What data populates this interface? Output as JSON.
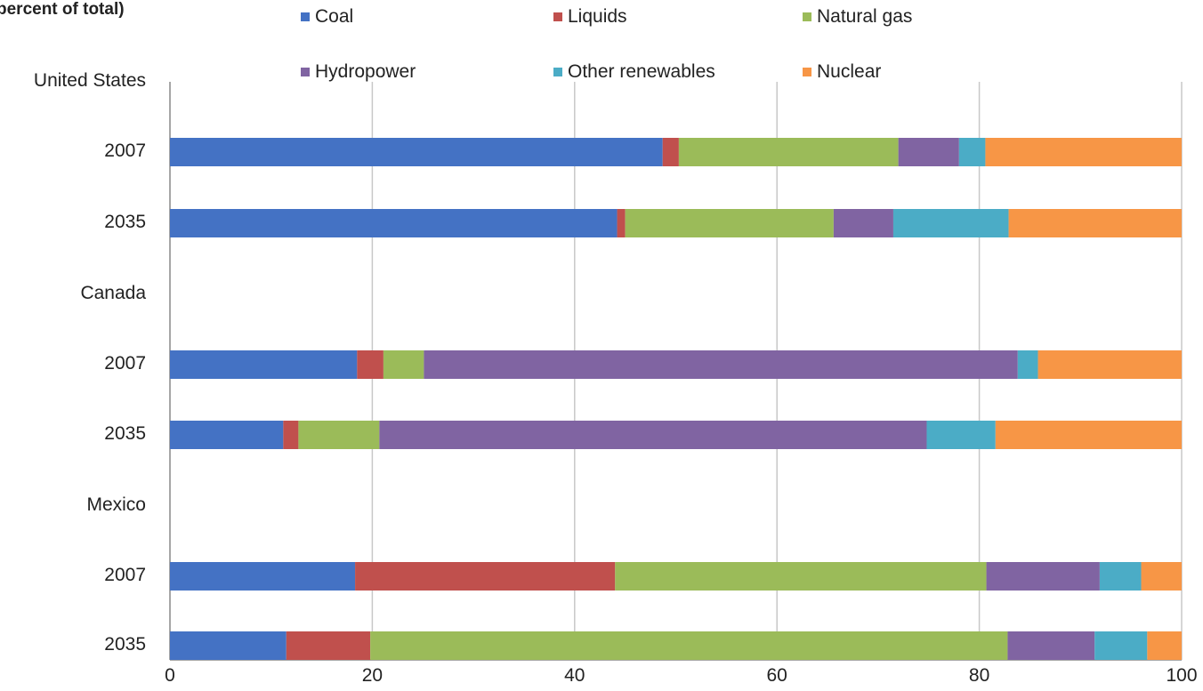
{
  "chart_data": {
    "type": "bar",
    "orientation": "horizontal",
    "stacked": true,
    "title": "",
    "subtitle": "percent of total)",
    "xlabel": "",
    "ylabel": "",
    "xlim": [
      0,
      100
    ],
    "x_ticks": [
      "0",
      "20",
      "40",
      "60",
      "80",
      "100"
    ],
    "grid": true,
    "legend_position": "top",
    "categories": [
      "United States",
      "2007",
      "2035",
      "Canada",
      "2007",
      "2035",
      "Mexico",
      "2007",
      "2035"
    ],
    "series": [
      {
        "name": "Coal",
        "color": "#4472C4",
        "values": [
          null,
          48.7,
          44.2,
          null,
          18.5,
          11.2,
          null,
          18.3,
          11.5
        ]
      },
      {
        "name": "Liquids",
        "color": "#C0504D",
        "values": [
          null,
          1.6,
          0.8,
          null,
          2.6,
          1.5,
          null,
          25.7,
          8.3
        ]
      },
      {
        "name": "Natural gas",
        "color": "#9BBB59",
        "values": [
          null,
          21.7,
          20.6,
          null,
          4.0,
          8.0,
          null,
          36.7,
          63.0
        ]
      },
      {
        "name": "Hydropower",
        "color": "#8064A2",
        "values": [
          null,
          6.0,
          5.9,
          null,
          58.7,
          54.1,
          null,
          11.2,
          8.6
        ]
      },
      {
        "name": "Other renewables",
        "color": "#4BACC6",
        "values": [
          null,
          2.6,
          11.4,
          null,
          2.0,
          6.8,
          null,
          4.1,
          5.2
        ]
      },
      {
        "name": "Nuclear",
        "color": "#F79646",
        "values": [
          null,
          19.4,
          17.1,
          null,
          14.2,
          18.4,
          null,
          4.0,
          3.4
        ]
      }
    ]
  }
}
